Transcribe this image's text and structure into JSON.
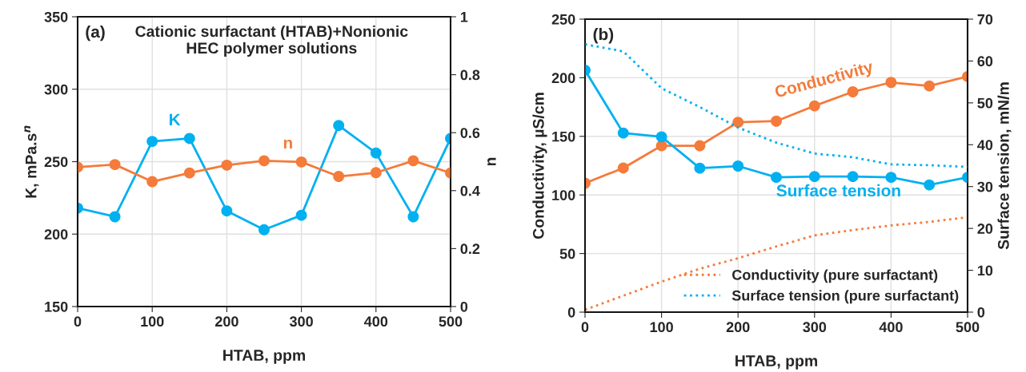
{
  "chart_data": [
    {
      "type": "line",
      "title": "Cationic surfactant (HTAB)+Nonionic\nHEC polymer solutions",
      "xlabel": "HTAB, ppm",
      "ylabel": "K, mPa.s$^{n}$",
      "y2label": "n",
      "x": [
        0,
        50,
        100,
        150,
        200,
        250,
        300,
        350,
        400,
        450,
        500
      ],
      "series": [
        {
          "name": "K",
          "color": "#00b0f0",
          "marker": "circle",
          "line_style": "solid",
          "values": [
            218,
            212,
            264,
            266,
            216,
            203,
            213,
            275,
            256,
            212,
            266
          ]
        },
        {
          "name": "n",
          "color": "#f47b3a",
          "marker": "circle",
          "line_style": "solid",
          "axis": "y2",
          "values": [
            0.481,
            0.49,
            0.431,
            0.461,
            0.488,
            0.503,
            0.499,
            0.449,
            0.462,
            0.503,
            0.461
          ]
        }
      ],
      "xlim": [
        0,
        500
      ],
      "xticks": [
        0,
        100,
        200,
        300,
        400,
        500
      ],
      "ylim": [
        150,
        350
      ],
      "yticks": [
        150,
        200,
        250,
        300,
        350
      ],
      "y2lim": [
        0,
        1
      ],
      "y2ticks": [
        0,
        0.2,
        0.4,
        0.6,
        0.8,
        1
      ],
      "grid": true,
      "legend": false,
      "annotations": [
        "(a)"
      ]
    },
    {
      "type": "line",
      "xlabel": "HTAB, ppm",
      "ylabel": "Conductivity, µS/cm",
      "y2label": "Surface tension, mN/m",
      "x": [
        0,
        50,
        100,
        150,
        200,
        250,
        300,
        350,
        400,
        450,
        500
      ],
      "series": [
        {
          "name": "Conductivity",
          "color": "#f47b3a",
          "marker": "circle",
          "line_style": "solid",
          "values": [
            110,
            123,
            142,
            142,
            162,
            163,
            176,
            188,
            196,
            193,
            201
          ]
        },
        {
          "name": "Surface tension",
          "color": "#00b0f0",
          "marker": "circle",
          "line_style": "solid",
          "axis": "y2",
          "values": [
            57.8,
            42.8,
            41.9,
            34.4,
            34.9,
            32.2,
            32.4,
            32.4,
            32.2,
            30.4,
            32.2
          ]
        },
        {
          "name": "Conductivity (pure surfactant)",
          "color": "#f47b3a",
          "marker": "none",
          "line_style": "dotted",
          "values": [
            2,
            14,
            26,
            37,
            46,
            56,
            65.5,
            70,
            74,
            77,
            81
          ]
        },
        {
          "name": "Surface tension (pure surfactant)",
          "color": "#00b0f0",
          "marker": "none",
          "line_style": "dotted",
          "axis": "y2",
          "values": [
            64,
            62.3,
            53.5,
            49,
            44.1,
            40.5,
            37.9,
            37,
            35.3,
            35.1,
            34.7
          ]
        }
      ],
      "xlim": [
        0,
        500
      ],
      "xticks": [
        0,
        100,
        200,
        300,
        400,
        500
      ],
      "ylim": [
        0,
        250
      ],
      "yticks": [
        0,
        50,
        100,
        150,
        200,
        250
      ],
      "y2lim": [
        0,
        70
      ],
      "y2ticks": [
        0,
        10,
        20,
        30,
        40,
        50,
        60,
        70
      ],
      "grid": true,
      "legend": "bottom right",
      "annotations": [
        "(b)"
      ]
    }
  ]
}
